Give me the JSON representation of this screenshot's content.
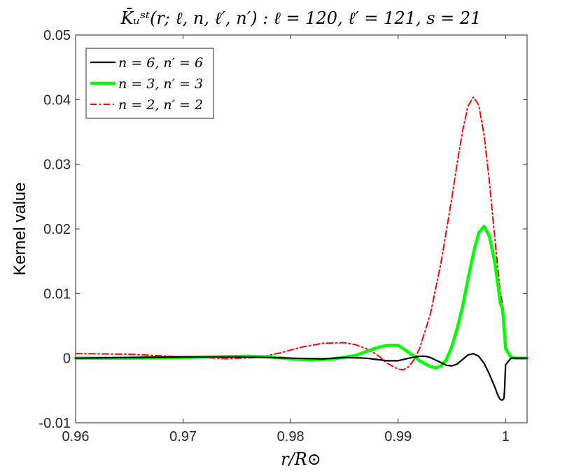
{
  "chart_data": {
    "type": "line",
    "title": "K̄ᵤˢᵗ(r; ℓ, n, ℓ′, n′) : ℓ = 120, ℓ′ = 121, s = 21",
    "xlabel": "r/R⊙",
    "ylabel": "Kernel value",
    "xlim": [
      0.96,
      1.002
    ],
    "ylim": [
      -0.01,
      0.05
    ],
    "xticks": [
      0.96,
      0.97,
      0.98,
      0.99,
      1.0
    ],
    "xtick_labels": [
      "0.96",
      "0.97",
      "0.98",
      "0.99",
      "1"
    ],
    "yticks": [
      -0.01,
      0,
      0.01,
      0.02,
      0.03,
      0.04,
      0.05
    ],
    "ytick_labels": [
      "-0.01",
      "0",
      "0.01",
      "0.02",
      "0.03",
      "0.04",
      "0.05"
    ],
    "grid": false,
    "legend_position": "top-left",
    "series": [
      {
        "name": "n = 6, n′ = 6",
        "color": "#000000",
        "style": "solid",
        "x": [
          0.96,
          0.965,
          0.97,
          0.975,
          0.978,
          0.98,
          0.983,
          0.985,
          0.987,
          0.988,
          0.989,
          0.99,
          0.991,
          0.992,
          0.9925,
          0.993,
          0.994,
          0.9945,
          0.995,
          0.9955,
          0.996,
          0.9965,
          0.997,
          0.9975,
          0.998,
          0.9985,
          0.999,
          0.9993,
          0.9995,
          0.9997,
          0.9998,
          0.99985,
          0.9999,
          1.0,
          1.0005,
          1.001,
          1.002
        ],
        "y": [
          0.0,
          0.0001,
          0.0002,
          0.0002,
          0.0001,
          0.0,
          -0.0001,
          0.0001,
          0.0,
          -0.0002,
          -0.0004,
          -0.0004,
          0.0,
          0.0003,
          0.0003,
          0.0001,
          -0.0007,
          -0.0011,
          -0.0012,
          -0.0009,
          -0.0002,
          0.0005,
          0.0007,
          0.0003,
          -0.0008,
          -0.0025,
          -0.0045,
          -0.0058,
          -0.0064,
          -0.0065,
          -0.0063,
          -0.0062,
          -0.005,
          -0.001,
          0.0,
          0.0,
          0.0
        ]
      },
      {
        "name": "n = 3, n′ = 3",
        "color": "#00ff00",
        "style": "solid-thick",
        "x": [
          0.96,
          0.965,
          0.97,
          0.973,
          0.976,
          0.978,
          0.98,
          0.982,
          0.984,
          0.986,
          0.987,
          0.988,
          0.989,
          0.99,
          0.991,
          0.992,
          0.993,
          0.9935,
          0.994,
          0.9945,
          0.995,
          0.9955,
          0.996,
          0.9965,
          0.997,
          0.9975,
          0.998,
          0.9985,
          0.999,
          0.9993,
          0.9995,
          0.9997,
          0.9998,
          1.0,
          1.0005,
          1.001,
          1.002
        ],
        "y": [
          0.0,
          0.0,
          0.0001,
          0.0002,
          0.0003,
          0.0002,
          -0.0001,
          -0.0003,
          -0.0001,
          0.0004,
          0.001,
          0.0016,
          0.002,
          0.002,
          0.0009,
          -0.0004,
          -0.0013,
          -0.0015,
          -0.0012,
          -0.0002,
          0.0018,
          0.0046,
          0.008,
          0.0122,
          0.0162,
          0.0194,
          0.0204,
          0.0188,
          0.0148,
          0.0112,
          0.0085,
          0.0078,
          0.006,
          0.0015,
          0.0001,
          0.0,
          0.0
        ]
      },
      {
        "name": "n = 2, n′ = 2",
        "color": "#ff0000",
        "style": "dash-dot",
        "x": [
          0.96,
          0.965,
          0.97,
          0.974,
          0.977,
          0.979,
          0.981,
          0.983,
          0.985,
          0.986,
          0.987,
          0.988,
          0.989,
          0.99,
          0.9905,
          0.991,
          0.9915,
          0.992,
          0.993,
          0.994,
          0.995,
          0.9955,
          0.996,
          0.9965,
          0.997,
          0.9975,
          0.998,
          0.9985,
          0.999,
          0.9993,
          0.9995,
          0.9997,
          0.9998,
          1.0,
          1.0005,
          1.001,
          1.002
        ],
        "y": [
          0.0007,
          0.0006,
          0.0002,
          -0.0001,
          0.0001,
          0.0008,
          0.0017,
          0.0023,
          0.0024,
          0.0021,
          0.0015,
          0.0006,
          -0.0008,
          -0.0017,
          -0.0018,
          -0.0013,
          -0.0002,
          0.0015,
          0.0068,
          0.0148,
          0.0248,
          0.0302,
          0.0352,
          0.039,
          0.0404,
          0.0392,
          0.0345,
          0.0272,
          0.0185,
          0.0135,
          0.0102,
          0.0085,
          0.0065,
          0.0015,
          0.0002,
          0.0,
          0.0
        ]
      }
    ]
  }
}
